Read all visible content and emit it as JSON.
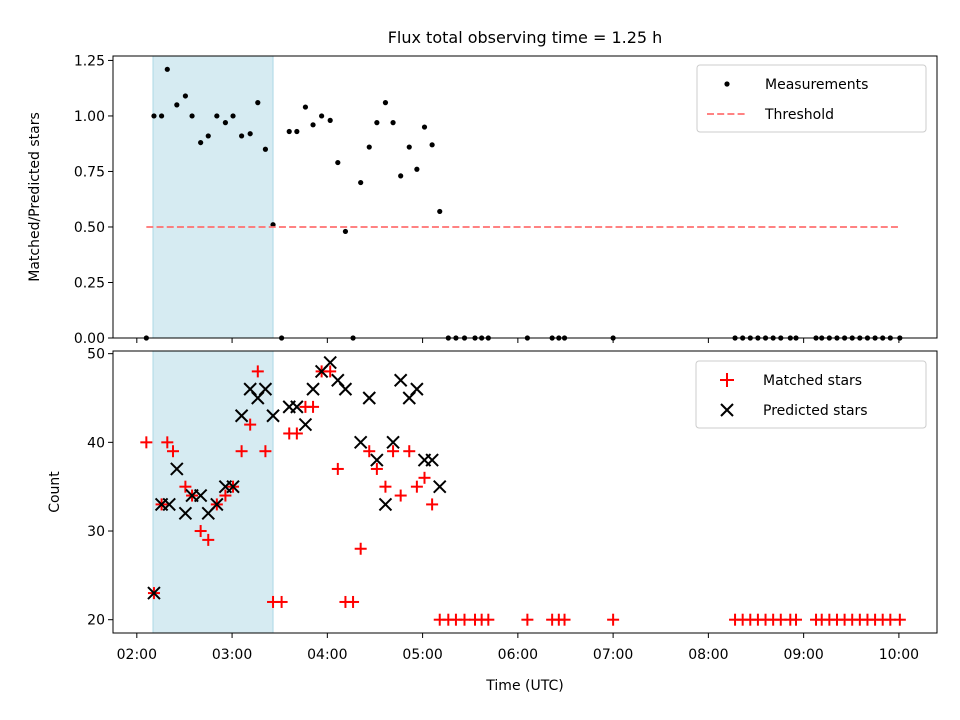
{
  "figure": {
    "title": "Flux total observing time = 1.25 h",
    "xlabel": "Time (UTC)"
  },
  "chart_data": [
    {
      "type": "scatter",
      "title": "Flux total observing time = 1.25 h",
      "ylabel": "Matched/Predicted stars",
      "xlabel": "",
      "x_unit": "hours UTC",
      "xlim": [
        1.75,
        10.4
      ],
      "ylim": [
        0.0,
        1.27
      ],
      "yticks": [
        0.0,
        0.25,
        0.5,
        0.75,
        1.0,
        1.25
      ],
      "ytick_labels": [
        "0.00",
        "0.25",
        "0.50",
        "0.75",
        "1.00",
        "1.25"
      ],
      "shaded_region": {
        "x": [
          2.17,
          3.43
        ],
        "color": "#add8e6"
      },
      "grid": false,
      "legend_position": "upper right",
      "series": [
        {
          "name": "Measurements",
          "kind": "dots",
          "color": "#000000",
          "x": [
            2.1,
            2.18,
            2.26,
            2.32,
            2.42,
            2.51,
            2.58,
            2.67,
            2.75,
            2.84,
            2.93,
            3.01,
            3.1,
            3.19,
            3.27,
            3.35,
            3.43,
            3.52,
            3.6,
            3.68,
            3.77,
            3.85,
            3.94,
            4.03,
            4.11,
            4.19,
            4.27,
            4.35,
            4.44,
            4.52,
            4.61,
            4.69,
            4.77,
            4.86,
            4.94,
            5.02,
            5.1,
            5.18,
            5.27,
            5.35,
            5.44,
            5.55,
            5.62,
            5.69,
            6.1,
            6.36,
            6.43,
            6.49,
            7.0,
            8.28,
            8.36,
            8.44,
            8.52,
            8.6,
            8.68,
            8.76,
            8.86,
            8.92,
            9.13,
            9.19,
            9.27,
            9.35,
            9.43,
            9.51,
            9.59,
            9.67,
            9.75,
            9.83,
            9.91,
            10.01
          ],
          "y": [
            0.0,
            1.0,
            1.0,
            1.21,
            1.05,
            1.09,
            1.0,
            0.88,
            0.91,
            1.0,
            0.97,
            1.0,
            0.91,
            0.92,
            1.06,
            0.85,
            0.51,
            0.0,
            0.93,
            0.93,
            1.04,
            0.96,
            1.0,
            0.98,
            0.79,
            0.48,
            0.0,
            0.7,
            0.86,
            0.97,
            1.06,
            0.97,
            0.73,
            0.86,
            0.76,
            0.95,
            0.87,
            0.57,
            0.0,
            0.0,
            0.0,
            0.0,
            0.0,
            0.0,
            0.0,
            0.0,
            0.0,
            0.0,
            0.0,
            0.0,
            0.0,
            0.0,
            0.0,
            0.0,
            0.0,
            0.0,
            0.0,
            0.0,
            0.0,
            0.0,
            0.0,
            0.0,
            0.0,
            0.0,
            0.0,
            0.0,
            0.0,
            0.0,
            0.0,
            0.0
          ]
        },
        {
          "name": "Threshold",
          "kind": "dashed-line",
          "color": "#ff7070",
          "x": [
            2.1,
            10.01
          ],
          "y": [
            0.5,
            0.5
          ]
        }
      ]
    },
    {
      "type": "scatter",
      "title": "",
      "ylabel": "Count",
      "xlabel": "Time (UTC)",
      "x_unit": "hours UTC",
      "xlim": [
        1.75,
        10.4
      ],
      "ylim": [
        18.5,
        50.3
      ],
      "yticks": [
        20,
        30,
        40,
        50
      ],
      "ytick_labels": [
        "20",
        "30",
        "40",
        "50"
      ],
      "xticks": [
        2,
        3,
        4,
        5,
        6,
        7,
        8,
        9,
        10
      ],
      "xtick_labels": [
        "02:00",
        "03:00",
        "04:00",
        "05:00",
        "06:00",
        "07:00",
        "08:00",
        "09:00",
        "10:00"
      ],
      "shaded_region": {
        "x": [
          2.17,
          3.43
        ],
        "color": "#add8e6"
      },
      "grid": false,
      "legend_position": "upper right",
      "series": [
        {
          "name": "Matched stars",
          "kind": "plus",
          "color": "#ff0000",
          "x": [
            2.1,
            2.18,
            2.26,
            2.32,
            2.38,
            2.51,
            2.58,
            2.67,
            2.75,
            2.84,
            2.93,
            3.01,
            3.1,
            3.19,
            3.27,
            3.35,
            3.43,
            3.52,
            3.6,
            3.68,
            3.77,
            3.85,
            3.94,
            4.03,
            4.11,
            4.19,
            4.27,
            4.35,
            4.44,
            4.52,
            4.61,
            4.69,
            4.77,
            4.86,
            4.94,
            5.02,
            5.1,
            5.18,
            5.27,
            5.35,
            5.44,
            5.55,
            5.62,
            5.69,
            6.1,
            6.36,
            6.43,
            6.49,
            7.0,
            8.28,
            8.36,
            8.44,
            8.52,
            8.6,
            8.68,
            8.76,
            8.86,
            8.92,
            9.13,
            9.19,
            9.27,
            9.35,
            9.43,
            9.51,
            9.59,
            9.67,
            9.75,
            9.83,
            9.91,
            10.01
          ],
          "y": [
            40,
            23,
            33,
            40,
            39,
            35,
            34,
            30,
            29,
            33,
            34,
            35,
            39,
            42,
            48,
            39,
            22,
            22,
            41,
            41,
            44,
            44,
            48,
            48,
            37,
            22,
            22,
            28,
            39,
            37,
            35,
            39,
            34,
            39,
            35,
            36,
            33,
            20,
            20,
            20,
            20,
            20,
            20,
            20,
            20,
            20,
            20,
            20,
            20,
            20,
            20,
            20,
            20,
            20,
            20,
            20,
            20,
            20,
            20,
            20,
            20,
            20,
            20,
            20,
            20,
            20,
            20,
            20,
            20,
            20
          ]
        },
        {
          "name": "Predicted stars",
          "kind": "x",
          "color": "#000000",
          "x": [
            2.18,
            2.26,
            2.34,
            2.42,
            2.51,
            2.58,
            2.67,
            2.75,
            2.84,
            2.93,
            3.01,
            3.1,
            3.19,
            3.27,
            3.35,
            3.43,
            3.6,
            3.68,
            3.77,
            3.85,
            3.94,
            4.03,
            4.11,
            4.19,
            4.35,
            4.44,
            4.52,
            4.61,
            4.69,
            4.77,
            4.86,
            4.94,
            5.02,
            5.1,
            5.18
          ],
          "y": [
            23,
            33,
            33,
            37,
            32,
            34,
            34,
            32,
            33,
            35,
            35,
            43,
            46,
            45,
            46,
            43,
            44,
            44,
            42,
            46,
            48,
            49,
            47,
            46,
            40,
            45,
            38,
            33,
            40,
            47,
            45,
            46,
            38,
            38,
            35
          ]
        }
      ]
    }
  ]
}
